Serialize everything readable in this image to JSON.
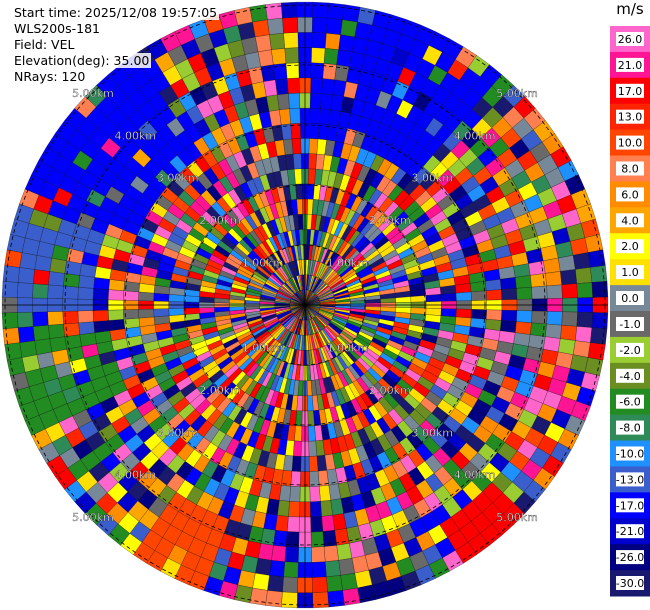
{
  "info": {
    "start_time": "Start time: 2025/12/08 19:57:05",
    "station": "WLS200s-181",
    "field": "Field: VEL",
    "elevation": "Elevation(deg): 35.00",
    "nrays": "NRays: 120"
  },
  "chart_data": {
    "type": "heatmap",
    "subtype": "polar-ppi",
    "field": "VEL",
    "nrays": 120,
    "range_gates": 20,
    "range_ring_labels": [
      "1.00km",
      "2.00km",
      "3.00km",
      "4.00km",
      "5.00km"
    ],
    "colorbar": {
      "unit": "m/s",
      "tick_labels": [
        "26.0",
        "21.0",
        "17.0",
        "13.0",
        "10.0",
        "8.0",
        "6.0",
        "4.0",
        "2.0",
        "1.0",
        "0.0",
        "-1.0",
        "-2.0",
        "-4.0",
        "-6.0",
        "-8.0",
        "-10.0",
        "-13.0",
        "-17.0",
        "-21.0",
        "-26.0",
        "-30.0"
      ],
      "bins": [
        {
          "color": "#ff66cc"
        },
        {
          "color": "#ff1493"
        },
        {
          "color": "#ff0000"
        },
        {
          "color": "#ff2400"
        },
        {
          "color": "#ff4500"
        },
        {
          "color": "#ff7f50"
        },
        {
          "color": "#ff8c00"
        },
        {
          "color": "#ffa500"
        },
        {
          "color": "#ffff00"
        },
        {
          "color": "#ffe000"
        },
        {
          "color": "#778899"
        },
        {
          "color": "#696969"
        },
        {
          "color": "#9acd32"
        },
        {
          "color": "#6b8e23"
        },
        {
          "color": "#228b22"
        },
        {
          "color": "#2e8b57"
        },
        {
          "color": "#1e90ff"
        },
        {
          "color": "#3a5fcd"
        },
        {
          "color": "#0000ff"
        },
        {
          "color": "#0000cd"
        },
        {
          "color": "#000080"
        },
        {
          "color": "#191970"
        }
      ]
    },
    "regions": [
      {
        "azimuth_from": 0,
        "azimuth_to": 40,
        "range_from": 0.55,
        "range_to": 1.0,
        "dominant_bin": 18
      },
      {
        "azimuth_from": 290,
        "azimuth_to": 330,
        "range_from": 0.6,
        "range_to": 1.0,
        "dominant_bin": 18
      },
      {
        "azimuth_from": 270,
        "azimuth_to": 290,
        "range_from": 0.7,
        "range_to": 1.0,
        "dominant_bin": 17
      },
      {
        "azimuth_from": 245,
        "azimuth_to": 262,
        "range_from": 0.65,
        "range_to": 1.0,
        "dominant_bin": 14
      },
      {
        "azimuth_from": 200,
        "azimuth_to": 215,
        "range_from": 0.75,
        "range_to": 1.0,
        "dominant_bin": 4
      },
      {
        "azimuth_from": 135,
        "azimuth_to": 150,
        "range_from": 0.85,
        "range_to": 1.0,
        "dominant_bin": 2
      }
    ]
  }
}
